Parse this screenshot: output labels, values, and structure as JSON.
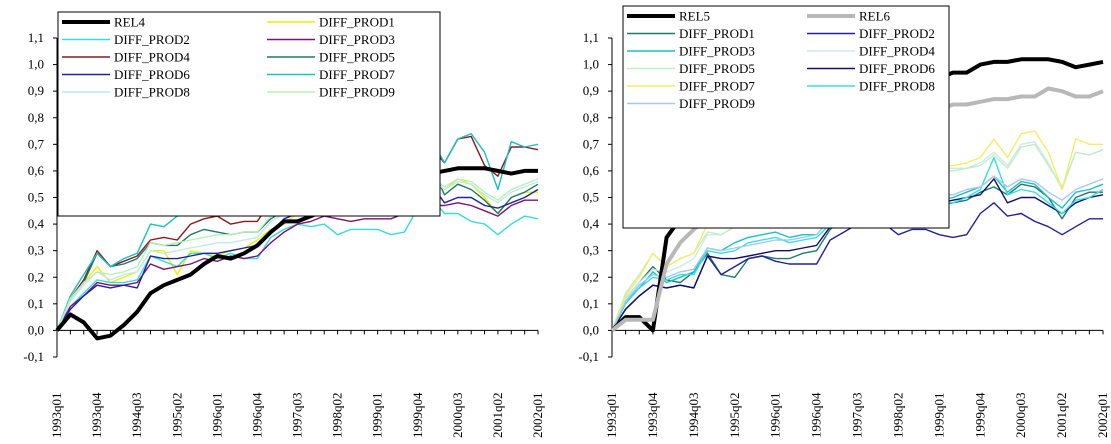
{
  "chart_data": [
    {
      "type": "line",
      "title": "",
      "xlabel": "",
      "ylabel": "",
      "ylim": [
        -0.1,
        1.1
      ],
      "yticks": [
        "-0,1",
        "0,0",
        "0,1",
        "0,2",
        "0,3",
        "0,4",
        "0,5",
        "0,6",
        "0,7",
        "0,8",
        "0,9",
        "1,0",
        "1,1"
      ],
      "x_tick_labels": [
        "1993q01",
        "1993q04",
        "1994q03",
        "1995q02",
        "1996q01",
        "1996q04",
        "1997q03",
        "1998q02",
        "1999q01",
        "1999q04",
        "2000q03",
        "2001q02",
        "2002q01"
      ],
      "x": [
        "1993q01",
        "1993q02",
        "1993q03",
        "1993q04",
        "1994q01",
        "1994q02",
        "1994q03",
        "1994q04",
        "1995q01",
        "1995q02",
        "1995q03",
        "1995q04",
        "1996q01",
        "1996q02",
        "1996q03",
        "1996q04",
        "1997q01",
        "1997q02",
        "1997q03",
        "1997q04",
        "1998q01",
        "1998q02",
        "1998q03",
        "1998q04",
        "1999q01",
        "1999q02",
        "1999q03",
        "1999q04",
        "2000q01",
        "2000q02",
        "2000q03",
        "2000q04",
        "2001q01",
        "2001q02",
        "2001q03",
        "2001q04",
        "2002q01"
      ],
      "legend": {
        "position": "top-left",
        "columns": 2
      },
      "series": [
        {
          "name": "REL4",
          "color": "#000000",
          "width": 4,
          "values": [
            0.0,
            0.06,
            0.03,
            -0.03,
            -0.02,
            0.02,
            0.07,
            0.14,
            0.17,
            0.19,
            0.21,
            0.25,
            0.28,
            0.27,
            0.29,
            0.32,
            0.37,
            0.41,
            0.41,
            0.43,
            0.45,
            0.45,
            0.47,
            0.5,
            0.52,
            0.54,
            0.56,
            0.57,
            0.59,
            0.6,
            0.61,
            0.61,
            0.61,
            0.6,
            0.59,
            0.6,
            0.6
          ]
        },
        {
          "name": "DIFF_PROD1",
          "color": "#f0f000",
          "width": 1.4,
          "values": [
            0.0,
            0.12,
            0.18,
            0.24,
            0.18,
            0.2,
            0.22,
            0.3,
            0.3,
            0.21,
            0.3,
            0.29,
            0.28,
            0.3,
            0.31,
            0.34,
            0.38,
            0.4,
            0.44,
            0.44,
            0.46,
            0.45,
            0.46,
            0.47,
            0.48,
            0.48,
            0.5,
            0.52,
            0.56,
            0.53,
            0.57,
            0.55,
            0.5,
            0.44,
            0.5,
            0.52,
            0.52
          ]
        },
        {
          "name": "DIFF_PROD2",
          "color": "#33dde0",
          "width": 1.4,
          "values": [
            0.0,
            0.09,
            0.14,
            0.19,
            0.18,
            0.18,
            0.19,
            0.28,
            0.26,
            0.24,
            0.29,
            0.29,
            0.27,
            0.29,
            0.27,
            0.27,
            0.35,
            0.38,
            0.4,
            0.39,
            0.4,
            0.36,
            0.38,
            0.38,
            0.38,
            0.36,
            0.37,
            0.46,
            0.5,
            0.44,
            0.44,
            0.41,
            0.4,
            0.36,
            0.4,
            0.43,
            0.42
          ]
        },
        {
          "name": "DIFF_PROD3",
          "color": "#7a1470",
          "width": 1.4,
          "values": [
            0.0,
            0.09,
            0.13,
            0.18,
            0.17,
            0.17,
            0.18,
            0.25,
            0.23,
            0.24,
            0.25,
            0.27,
            0.26,
            0.28,
            0.27,
            0.28,
            0.33,
            0.37,
            0.4,
            0.41,
            0.43,
            0.42,
            0.41,
            0.42,
            0.42,
            0.42,
            0.44,
            0.45,
            0.47,
            0.47,
            0.48,
            0.47,
            0.45,
            0.43,
            0.47,
            0.49,
            0.49
          ]
        },
        {
          "name": "DIFF_PROD4",
          "color": "#8b1a1a",
          "width": 1.4,
          "values": [
            0.0,
            0.12,
            0.19,
            0.3,
            0.24,
            0.26,
            0.28,
            0.34,
            0.35,
            0.34,
            0.4,
            0.42,
            0.43,
            0.4,
            0.41,
            0.41,
            0.49,
            0.54,
            0.57,
            0.57,
            0.59,
            0.58,
            0.62,
            0.6,
            0.61,
            0.62,
            0.62,
            0.63,
            0.69,
            0.63,
            0.72,
            0.73,
            0.62,
            0.58,
            0.69,
            0.69,
            0.68
          ]
        },
        {
          "name": "DIFF_PROD5",
          "color": "#1e7a6a",
          "width": 1.4,
          "values": [
            0.0,
            0.12,
            0.18,
            0.29,
            0.24,
            0.25,
            0.27,
            0.33,
            0.32,
            0.32,
            0.36,
            0.38,
            0.37,
            0.36,
            0.37,
            0.37,
            0.42,
            0.45,
            0.46,
            0.46,
            0.47,
            0.46,
            0.47,
            0.47,
            0.47,
            0.47,
            0.49,
            0.51,
            0.62,
            0.51,
            0.55,
            0.53,
            0.49,
            0.44,
            0.5,
            0.52,
            0.55
          ]
        },
        {
          "name": "DIFF_PROD6",
          "color": "#2020a0",
          "width": 1.4,
          "values": [
            0.0,
            0.08,
            0.13,
            0.17,
            0.16,
            0.17,
            0.16,
            0.28,
            0.27,
            0.27,
            0.28,
            0.29,
            0.29,
            0.3,
            0.31,
            0.32,
            0.37,
            0.42,
            0.44,
            0.44,
            0.46,
            0.45,
            0.46,
            0.48,
            0.47,
            0.47,
            0.47,
            0.5,
            0.55,
            0.48,
            0.5,
            0.5,
            0.47,
            0.46,
            0.48,
            0.5,
            0.53
          ]
        },
        {
          "name": "DIFF_PROD7",
          "color": "#18c0c8",
          "width": 1.4,
          "values": [
            0.0,
            0.13,
            0.21,
            0.29,
            0.24,
            0.27,
            0.29,
            0.4,
            0.39,
            0.43,
            0.44,
            0.45,
            0.46,
            0.44,
            0.44,
            0.45,
            0.5,
            0.53,
            0.57,
            0.57,
            0.59,
            0.59,
            0.64,
            0.61,
            0.63,
            0.63,
            0.61,
            0.64,
            0.72,
            0.63,
            0.72,
            0.74,
            0.67,
            0.53,
            0.71,
            0.69,
            0.7
          ]
        },
        {
          "name": "DIFF_PROD8",
          "color": "#bfe8f0",
          "width": 1.4,
          "values": [
            0.0,
            0.11,
            0.17,
            0.22,
            0.19,
            0.21,
            0.22,
            0.3,
            0.29,
            0.3,
            0.31,
            0.32,
            0.33,
            0.33,
            0.34,
            0.35,
            0.41,
            0.44,
            0.46,
            0.46,
            0.48,
            0.47,
            0.49,
            0.49,
            0.5,
            0.5,
            0.52,
            0.53,
            0.57,
            0.53,
            0.56,
            0.55,
            0.51,
            0.48,
            0.52,
            0.54,
            0.56
          ]
        },
        {
          "name": "DIFF_PROD9",
          "color": "#b8f0b8",
          "width": 1.4,
          "values": [
            0.0,
            0.12,
            0.18,
            0.22,
            0.21,
            0.22,
            0.24,
            0.33,
            0.32,
            0.33,
            0.34,
            0.35,
            0.36,
            0.36,
            0.37,
            0.37,
            0.43,
            0.46,
            0.47,
            0.47,
            0.49,
            0.48,
            0.5,
            0.5,
            0.51,
            0.51,
            0.53,
            0.54,
            0.58,
            0.54,
            0.57,
            0.56,
            0.52,
            0.49,
            0.53,
            0.55,
            0.57
          ]
        }
      ]
    },
    {
      "type": "line",
      "title": "",
      "xlabel": "",
      "ylabel": "",
      "ylim": [
        -0.1,
        1.1
      ],
      "yticks": [
        "-0,1",
        "0,0",
        "0,1",
        "0,2",
        "0,3",
        "0,4",
        "0,5",
        "0,6",
        "0,7",
        "0,8",
        "0,9",
        "1,0",
        "1,1"
      ],
      "x_tick_labels": [
        "1993q01",
        "1993q04",
        "1994q03",
        "1995q02",
        "1996q01",
        "1996q04",
        "1997q03",
        "1998q02",
        "1999q01",
        "1999q04",
        "2000q03",
        "2001q02",
        "2002q01"
      ],
      "x": [
        "1993q01",
        "1993q02",
        "1993q03",
        "1993q04",
        "1994q01",
        "1994q02",
        "1994q03",
        "1994q04",
        "1995q01",
        "1995q02",
        "1995q03",
        "1995q04",
        "1996q01",
        "1996q02",
        "1996q03",
        "1996q04",
        "1997q01",
        "1997q02",
        "1997q03",
        "1997q04",
        "1998q01",
        "1998q02",
        "1998q03",
        "1998q04",
        "1999q01",
        "1999q02",
        "1999q03",
        "1999q04",
        "2000q01",
        "2000q02",
        "2000q03",
        "2000q04",
        "2001q01",
        "2001q02",
        "2001q03",
        "2001q04",
        "2002q01"
      ],
      "legend": {
        "position": "top-left",
        "columns": 2
      },
      "series": [
        {
          "name": "REL5",
          "color": "#000000",
          "width": 4,
          "values": [
            0.0,
            0.05,
            0.05,
            0.0,
            0.35,
            0.42,
            0.47,
            0.5,
            0.57,
            0.64,
            0.66,
            0.68,
            0.69,
            0.7,
            0.72,
            0.76,
            0.79,
            0.79,
            0.79,
            0.84,
            0.85,
            0.86,
            0.89,
            0.93,
            0.95,
            0.97,
            0.97,
            1.0,
            1.01,
            1.01,
            1.02,
            1.02,
            1.02,
            1.01,
            0.99,
            1.0,
            1.01
          ]
        },
        {
          "name": "REL6",
          "color": "#b8b8b8",
          "width": 4,
          "values": [
            0.0,
            0.04,
            0.04,
            0.04,
            0.25,
            0.33,
            0.38,
            0.42,
            0.48,
            0.53,
            0.55,
            0.57,
            0.58,
            0.59,
            0.61,
            0.64,
            0.67,
            0.68,
            0.68,
            0.72,
            0.73,
            0.74,
            0.77,
            0.81,
            0.83,
            0.85,
            0.85,
            0.86,
            0.87,
            0.87,
            0.88,
            0.88,
            0.91,
            0.9,
            0.88,
            0.88,
            0.9
          ]
        },
        {
          "name": "DIFF_PROD1",
          "color": "#1e7a6a",
          "width": 1.4,
          "values": [
            0.0,
            0.12,
            0.18,
            0.24,
            0.19,
            0.18,
            0.22,
            0.29,
            0.21,
            0.2,
            0.27,
            0.28,
            0.27,
            0.27,
            0.29,
            0.3,
            0.38,
            0.42,
            0.44,
            0.44,
            0.46,
            0.45,
            0.46,
            0.47,
            0.47,
            0.48,
            0.49,
            0.52,
            0.54,
            0.51,
            0.55,
            0.54,
            0.5,
            0.42,
            0.5,
            0.52,
            0.52
          ]
        },
        {
          "name": "DIFF_PROD2",
          "color": "#2020a0",
          "width": 1.4,
          "values": [
            0.0,
            0.08,
            0.13,
            0.17,
            0.16,
            0.17,
            0.16,
            0.28,
            0.21,
            0.24,
            0.27,
            0.28,
            0.26,
            0.25,
            0.25,
            0.25,
            0.34,
            0.37,
            0.4,
            0.39,
            0.4,
            0.36,
            0.38,
            0.38,
            0.36,
            0.35,
            0.36,
            0.44,
            0.48,
            0.43,
            0.44,
            0.41,
            0.39,
            0.36,
            0.39,
            0.42,
            0.42
          ]
        },
        {
          "name": "DIFF_PROD3",
          "color": "#18c0c8",
          "width": 1.4,
          "values": [
            0.0,
            0.11,
            0.16,
            0.22,
            0.18,
            0.2,
            0.22,
            0.31,
            0.3,
            0.33,
            0.35,
            0.36,
            0.37,
            0.35,
            0.36,
            0.36,
            0.42,
            0.45,
            0.46,
            0.46,
            0.47,
            0.47,
            0.49,
            0.49,
            0.49,
            0.5,
            0.52,
            0.54,
            0.58,
            0.52,
            0.56,
            0.55,
            0.5,
            0.46,
            0.52,
            0.53,
            0.55
          ]
        },
        {
          "name": "DIFF_PROD4",
          "color": "#cde8f0",
          "width": 1.4,
          "values": [
            0.0,
            0.12,
            0.18,
            0.23,
            0.22,
            0.24,
            0.27,
            0.36,
            0.36,
            0.39,
            0.41,
            0.42,
            0.43,
            0.42,
            0.43,
            0.45,
            0.5,
            0.55,
            0.57,
            0.58,
            0.6,
            0.6,
            0.62,
            0.61,
            0.61,
            0.61,
            0.61,
            0.63,
            0.67,
            0.62,
            0.7,
            0.71,
            0.63,
            0.53,
            0.67,
            0.66,
            0.68
          ]
        },
        {
          "name": "DIFF_PROD5",
          "color": "#c0f0c0",
          "width": 1.4,
          "values": [
            0.0,
            0.14,
            0.21,
            0.29,
            0.24,
            0.27,
            0.29,
            0.37,
            0.36,
            0.39,
            0.4,
            0.41,
            0.42,
            0.41,
            0.42,
            0.43,
            0.48,
            0.52,
            0.54,
            0.55,
            0.57,
            0.57,
            0.59,
            0.59,
            0.6,
            0.6,
            0.61,
            0.62,
            0.66,
            0.61,
            0.69,
            0.7,
            0.62,
            0.54,
            0.67,
            0.66,
            0.68
          ]
        },
        {
          "name": "DIFF_PROD6",
          "color": "#101070",
          "width": 1.4,
          "values": [
            0.0,
            0.08,
            0.13,
            0.17,
            0.16,
            0.17,
            0.16,
            0.28,
            0.27,
            0.27,
            0.28,
            0.29,
            0.3,
            0.3,
            0.31,
            0.32,
            0.39,
            0.43,
            0.45,
            0.45,
            0.47,
            0.46,
            0.47,
            0.49,
            0.48,
            0.49,
            0.5,
            0.51,
            0.57,
            0.48,
            0.5,
            0.5,
            0.47,
            0.44,
            0.48,
            0.5,
            0.51
          ]
        },
        {
          "name": "DIFF_PROD7",
          "color": "#f0f060",
          "width": 1.4,
          "values": [
            0.0,
            0.13,
            0.2,
            0.29,
            0.24,
            0.27,
            0.29,
            0.4,
            0.4,
            0.45,
            0.46,
            0.47,
            0.48,
            0.46,
            0.46,
            0.47,
            0.52,
            0.56,
            0.58,
            0.58,
            0.61,
            0.6,
            0.64,
            0.62,
            0.62,
            0.62,
            0.63,
            0.65,
            0.72,
            0.65,
            0.74,
            0.75,
            0.67,
            0.53,
            0.72,
            0.7,
            0.7
          ]
        },
        {
          "name": "DIFF_PROD8",
          "color": "#33e0e8",
          "width": 1.4,
          "values": [
            0.0,
            0.1,
            0.16,
            0.2,
            0.19,
            0.21,
            0.21,
            0.3,
            0.29,
            0.3,
            0.33,
            0.34,
            0.35,
            0.33,
            0.34,
            0.35,
            0.4,
            0.44,
            0.46,
            0.46,
            0.48,
            0.47,
            0.48,
            0.48,
            0.48,
            0.48,
            0.5,
            0.53,
            0.65,
            0.51,
            0.53,
            0.52,
            0.48,
            0.44,
            0.49,
            0.5,
            0.53
          ]
        },
        {
          "name": "DIFF_PROD9",
          "color": "#a8c8f0",
          "width": 1.4,
          "values": [
            0.0,
            0.11,
            0.17,
            0.21,
            0.2,
            0.22,
            0.23,
            0.31,
            0.3,
            0.31,
            0.32,
            0.33,
            0.34,
            0.34,
            0.35,
            0.36,
            0.42,
            0.45,
            0.47,
            0.47,
            0.49,
            0.48,
            0.5,
            0.5,
            0.51,
            0.51,
            0.53,
            0.54,
            0.58,
            0.54,
            0.57,
            0.56,
            0.52,
            0.49,
            0.53,
            0.55,
            0.57
          ]
        }
      ]
    }
  ]
}
